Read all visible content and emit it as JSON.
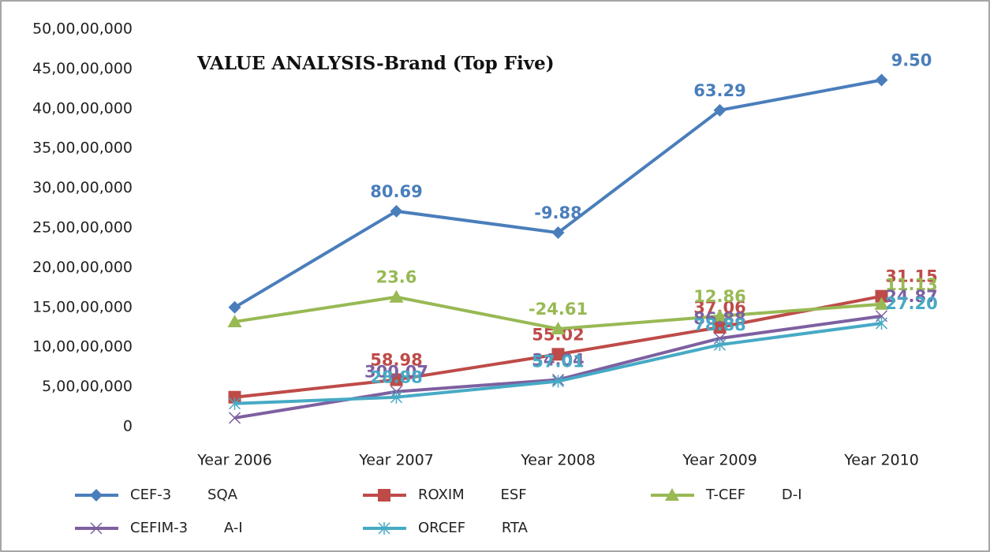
{
  "chart_data": {
    "type": "line",
    "title": "VALUE ANALYSIS-Brand (Top Five)",
    "categories": [
      "Year 2006",
      "Year 2007",
      "Year 2008",
      "Year 2009",
      "Year 2010"
    ],
    "ylim": [
      0,
      500000000
    ],
    "yticks": [
      0,
      {
        "value": 50000000,
        "label": "5,00,00,000"
      },
      {
        "value": 100000000,
        "label": "10,00,00,000"
      },
      {
        "value": 150000000,
        "label": "15,00,00,000"
      },
      {
        "value": 200000000,
        "label": "20,00,00,000"
      },
      {
        "value": 250000000,
        "label": "25,00,00,000"
      },
      {
        "value": 300000000,
        "label": "30,00,00,000"
      },
      {
        "value": 350000000,
        "label": "35,00,00,000"
      },
      {
        "value": 400000000,
        "label": "40,00,00,000"
      },
      {
        "value": 450000000,
        "label": "45,00,00,000"
      },
      {
        "value": 500000000,
        "label": "50,00,00,000"
      }
    ],
    "grid": false,
    "legend": "bottom",
    "series": [
      {
        "name": "CEF-3        SQA",
        "color": "#4a7ebb",
        "marker": "diamond",
        "values": [
          150000000,
          271000000,
          244000000,
          398000000,
          436000000
        ],
        "labels": [
          null,
          "80.69",
          "-9.88",
          "63.29",
          "9.50"
        ]
      },
      {
        "name": "ROXIM        ESF",
        "color": "#be4b48",
        "marker": "square",
        "values": [
          37000000,
          59000000,
          91000000,
          125000000,
          164000000
        ],
        "labels": [
          null,
          "58.98",
          "55.02",
          "37.06",
          "31.15"
        ]
      },
      {
        "name": "T-CEF        D-I",
        "color": "#98b954",
        "marker": "triangle",
        "values": [
          132000000,
          163000000,
          123000000,
          139000000,
          154000000
        ],
        "labels": [
          null,
          "23.6",
          "-24.61",
          "12.86",
          "11.13"
        ]
      },
      {
        "name": "CEFIM-3        A-I",
        "color": "#7d60a0",
        "marker": "x",
        "values": [
          11000000,
          44000000,
          59000000,
          111000000,
          139000000
        ],
        "labels": [
          null,
          "300.07",
          "34.04",
          "86.88",
          "24.87"
        ]
      },
      {
        "name": "ORCEF        RTA",
        "color": "#46aac5",
        "marker": "star",
        "values": [
          29000000,
          37000000,
          57000000,
          103000000,
          130000000
        ],
        "labels": [
          null,
          "28.88",
          "57.01",
          "78.88",
          "27.20"
        ]
      }
    ]
  }
}
